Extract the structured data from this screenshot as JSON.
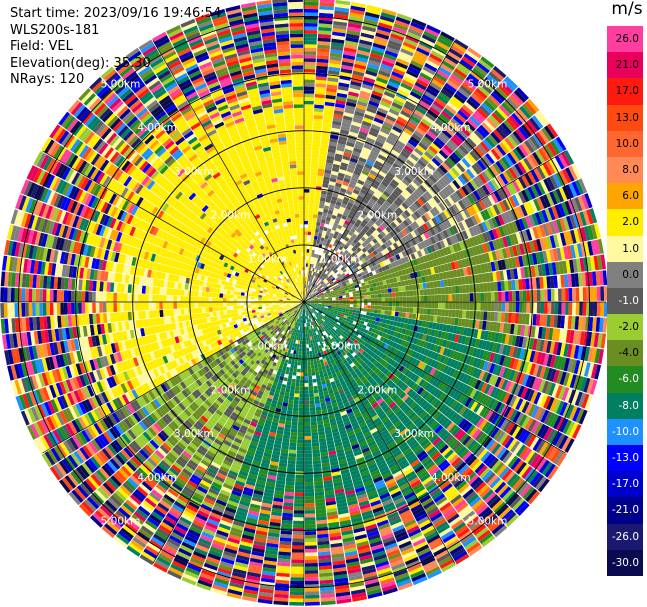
{
  "header": {
    "start_time": "Start time: 2023/09/16 19:46:54",
    "instrument": "WLS200s-181",
    "field": "Field: VEL",
    "elevation": "Elevation(deg): 35.30",
    "nrays": "NRays: 120"
  },
  "colorbar": {
    "unit": "m/s",
    "bins": [
      {
        "label": "26.0",
        "color": "#ff3ea0"
      },
      {
        "label": "21.0",
        "color": "#e8005a"
      },
      {
        "label": "17.0",
        "color": "#ff1a10"
      },
      {
        "label": "13.0",
        "color": "#ff4a10"
      },
      {
        "label": "10.0",
        "color": "#ff6630"
      },
      {
        "label": "8.0",
        "color": "#ff8a55"
      },
      {
        "label": "6.0",
        "color": "#ffa500"
      },
      {
        "label": "2.0",
        "color": "#ffee00"
      },
      {
        "label": "1.0",
        "color": "#fff8a0"
      },
      {
        "label": "0.0",
        "color": "#808080"
      },
      {
        "label": "-1.0",
        "color": "#5a5a5a"
      },
      {
        "label": "-2.0",
        "color": "#9acd32"
      },
      {
        "label": "-4.0",
        "color": "#6b8e23"
      },
      {
        "label": "-6.0",
        "color": "#228b22"
      },
      {
        "label": "-8.0",
        "color": "#008060"
      },
      {
        "label": "-10.0",
        "color": "#1e90ff"
      },
      {
        "label": "-13.0",
        "color": "#0000ff"
      },
      {
        "label": "-17.0",
        "color": "#0000cd"
      },
      {
        "label": "-21.0",
        "color": "#00008b"
      },
      {
        "label": "-26.0",
        "color": "#191970"
      },
      {
        "label": "-30.0",
        "color": "#0a0a50"
      }
    ]
  },
  "chart_data": {
    "type": "heatmap",
    "projection": "polar PPI",
    "field": "VEL",
    "units": "m/s",
    "nrays": 120,
    "range_rings_km": [
      1.0,
      2.0,
      3.0,
      4.0,
      5.0
    ],
    "ring_labels": [
      "1.00km",
      "2.00km",
      "3.00km",
      "4.00km",
      "5.00km"
    ],
    "max_range_km": 5.13,
    "velocity_pattern": {
      "northwest_sector": "positive 2 to 8 m/s (orange/yellow)",
      "northeast_sector": "near 0 m/s (grey)",
      "southeast_sector": "negative -4 to -8 m/s (green)",
      "southwest_sector": "mixed 1 to -2 m/s (yellow/grey)",
      "outer_ranges": "noisy, full color spread"
    }
  }
}
